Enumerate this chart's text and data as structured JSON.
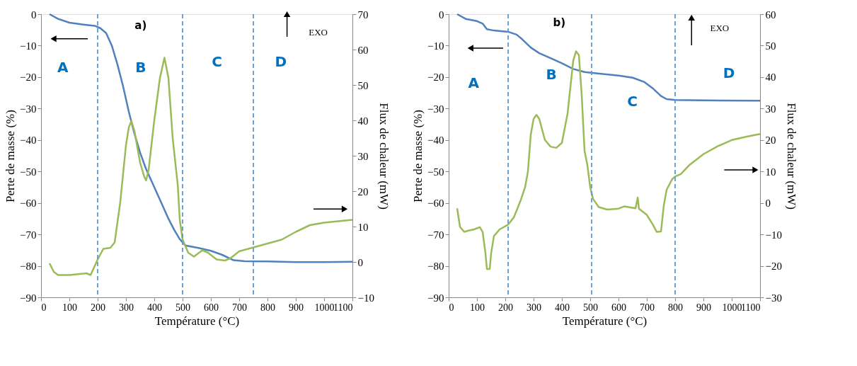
{
  "chart_data": [
    {
      "type": "line",
      "xlabel": "Température (°C)",
      "ylabel": "Perte de masse (%)",
      "y2label": "Flux de chaleur (mW)",
      "xlim": [
        0,
        1100
      ],
      "xticks": [
        0,
        100,
        200,
        300,
        400,
        500,
        600,
        700,
        800,
        900,
        1000,
        1100
      ],
      "ylim": [
        -90,
        0
      ],
      "yticks": [
        -90,
        -80,
        -70,
        -60,
        -50,
        -40,
        -30,
        -20,
        -10,
        0
      ],
      "y2lim": [
        -10,
        70
      ],
      "y2ticks": [
        -10,
        0,
        10,
        20,
        30,
        40,
        50,
        60,
        70
      ],
      "grid": false,
      "marker": "none",
      "line_style": "solid",
      "series": [
        {
          "color": "#4f81bd",
          "x": [
            30,
            60,
            100,
            150,
            190,
            210,
            230,
            250,
            270,
            290,
            310,
            330,
            350,
            370,
            390,
            410,
            430,
            450,
            470,
            490,
            510,
            550,
            600,
            640,
            680,
            720,
            800,
            900,
            1000,
            1100
          ],
          "values": [
            0,
            -1.5,
            -2.7,
            -3.3,
            -3.7,
            -4.5,
            -6,
            -10,
            -16,
            -23,
            -31,
            -38,
            -44,
            -49,
            -53,
            -57,
            -61,
            -65,
            -68.5,
            -71.5,
            -73.5,
            -74.2,
            -75.2,
            -76.5,
            -78.2,
            -78.5,
            -78.6,
            -78.8,
            -78.8,
            -78.7
          ]
        },
        {
          "color": "#9bbb59",
          "axis": "y2",
          "x": [
            30,
            45,
            60,
            100,
            150,
            160,
            175,
            200,
            220,
            245,
            260,
            280,
            300,
            310,
            319,
            330,
            350,
            365,
            371,
            380,
            400,
            420,
            436,
            450,
            465,
            483,
            490,
            500,
            520,
            540,
            570,
            590,
            620,
            650,
            670,
            700,
            750,
            800,
            850,
            900,
            950,
            1000,
            1050,
            1100
          ],
          "values": [
            -0.4,
            -2.8,
            -3.7,
            -3.7,
            -3.3,
            -3.2,
            -3.7,
            0.7,
            3.7,
            4,
            5.5,
            17,
            33,
            38,
            39.8,
            37,
            28,
            24,
            23,
            26,
            40,
            52,
            57.7,
            52,
            35,
            21.7,
            12,
            6.3,
            2.6,
            1.5,
            3.3,
            2.6,
            0.7,
            0.4,
            1.1,
            3,
            4.1,
            5.2,
            6.3,
            8.5,
            10.4,
            11.1,
            11.5,
            11.9
          ]
        }
      ],
      "ref_lines": [
        {
          "axis": "x",
          "value": 200,
          "color": "#5b9bd5",
          "line_style": "dashed"
        },
        {
          "axis": "x",
          "value": 500,
          "color": "#5b9bd5",
          "line_style": "dashed"
        },
        {
          "axis": "x",
          "value": 750,
          "color": "#5b9bd5",
          "line_style": "dashed"
        }
      ],
      "annotations": [
        "a)",
        "A",
        "B",
        "C",
        "D",
        "EXO"
      ]
    },
    {
      "type": "line",
      "xlabel": "Température (°C)",
      "ylabel": "Perte de masse (%)",
      "y2label": "Flux de chaleur (mW)",
      "xlim": [
        0,
        1100
      ],
      "xticks": [
        0,
        100,
        200,
        300,
        400,
        500,
        600,
        700,
        800,
        900,
        1000,
        1100
      ],
      "ylim": [
        -90,
        0
      ],
      "yticks": [
        -90,
        -80,
        -70,
        -60,
        -50,
        -40,
        -30,
        -20,
        -10,
        0
      ],
      "y2lim": [
        -30,
        60
      ],
      "y2ticks": [
        -30,
        -20,
        -10,
        0,
        10,
        20,
        30,
        40,
        50,
        60
      ],
      "grid": false,
      "marker": "none",
      "line_style": "solid",
      "series": [
        {
          "color": "#4f81bd",
          "x": [
            30,
            60,
            100,
            120,
            135,
            160,
            210,
            240,
            260,
            290,
            320,
            360,
            400,
            440,
            480,
            520,
            600,
            650,
            690,
            720,
            750,
            770,
            800,
            900,
            1100
          ],
          "values": [
            0,
            -1.5,
            -2.2,
            -3,
            -4.8,
            -5.2,
            -5.6,
            -6.5,
            -8,
            -10.6,
            -12.4,
            -14,
            -15.6,
            -17.4,
            -18.4,
            -18.8,
            -19.5,
            -20.2,
            -21.5,
            -23.5,
            -26,
            -27,
            -27.3,
            -27.4,
            -27.5
          ]
        },
        {
          "color": "#9bbb59",
          "axis": "y2",
          "x": [
            30,
            40,
            55,
            70,
            90,
            110,
            120,
            130,
            135,
            145,
            150,
            160,
            180,
            210,
            230,
            245,
            255,
            270,
            280,
            290,
            300,
            310,
            320,
            340,
            360,
            380,
            400,
            420,
            440,
            450,
            460,
            470,
            480,
            490,
            500,
            510,
            530,
            560,
            600,
            620,
            660,
            668,
            672,
            700,
            720,
            735,
            750,
            760,
            770,
            790,
            800,
            820,
            850,
            900,
            950,
            1000,
            1050,
            1100
          ],
          "values": [
            -1.7,
            -7.6,
            -9.2,
            -8.8,
            -8.4,
            -7.7,
            -9.2,
            -16,
            -21,
            -21,
            -16,
            -10.5,
            -8.4,
            -6.9,
            -4.6,
            -1.3,
            1,
            5,
            10,
            21.7,
            26.7,
            28,
            26.7,
            20,
            17.9,
            17.5,
            19.1,
            28.4,
            45.2,
            48.2,
            47,
            34.3,
            16.6,
            12,
            5,
            1.3,
            -1.3,
            -2.1,
            -1.8,
            -1.1,
            -1.7,
            1.7,
            -1.8,
            -3.8,
            -6.7,
            -9.2,
            -9.1,
            -0.8,
            4.2,
            7.6,
            8.4,
            9.2,
            12,
            15.5,
            18,
            20,
            21,
            21.9
          ]
        }
      ],
      "ref_lines": [
        {
          "axis": "x",
          "value": 210,
          "color": "#5b9bd5",
          "line_style": "dashed"
        },
        {
          "axis": "x",
          "value": 505,
          "color": "#5b9bd5",
          "line_style": "dashed"
        },
        {
          "axis": "x",
          "value": 800,
          "color": "#5b9bd5",
          "line_style": "dashed"
        }
      ],
      "annotations": [
        "b)",
        "A",
        "B",
        "C",
        "D",
        "EXO"
      ]
    }
  ]
}
